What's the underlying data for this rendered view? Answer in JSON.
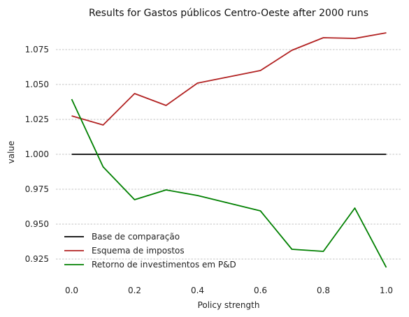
{
  "chart_data": {
    "type": "line",
    "title": "Results for Gastos públicos Centro-Oeste after 2000 runs",
    "xlabel": "Policy strength",
    "ylabel": "value",
    "x": [
      0.0,
      0.1,
      0.2,
      0.3,
      0.4,
      0.5,
      0.6,
      0.7,
      0.8,
      0.9,
      1.0
    ],
    "xlim": [
      -0.05,
      1.05
    ],
    "ylim": [
      0.9125,
      1.0925
    ],
    "x_ticks": [
      0.0,
      0.2,
      0.4,
      0.6,
      0.8,
      1.0
    ],
    "x_tick_labels": [
      "0.0",
      "0.2",
      "0.4",
      "0.6",
      "0.8",
      "1.0"
    ],
    "y_ticks": [
      0.925,
      0.95,
      0.975,
      1.0,
      1.025,
      1.05,
      1.075
    ],
    "y_tick_labels": [
      "0.925",
      "0.950",
      "0.975",
      "1.000",
      "1.025",
      "1.050",
      "1.075"
    ],
    "grid": "horizontal dashed",
    "legend_position": "bottom-left",
    "series": [
      {
        "name": "Base de comparação",
        "color": "#000000",
        "values": [
          1.0,
          1.0,
          1.0,
          1.0,
          1.0,
          1.0,
          1.0,
          1.0,
          1.0,
          1.0,
          1.0
        ]
      },
      {
        "name": "Esquema de impostos",
        "color": "#b22222",
        "values": [
          1.0275,
          1.021,
          1.0435,
          1.035,
          1.051,
          1.0555,
          1.06,
          1.0745,
          1.0835,
          1.083,
          1.087
        ]
      },
      {
        "name": "Retorno de investimentos em P&D",
        "color": "#008000",
        "values": [
          1.0395,
          0.991,
          0.9675,
          0.9745,
          0.9705,
          0.965,
          0.9595,
          0.932,
          0.9305,
          0.9615,
          0.919
        ]
      }
    ]
  }
}
